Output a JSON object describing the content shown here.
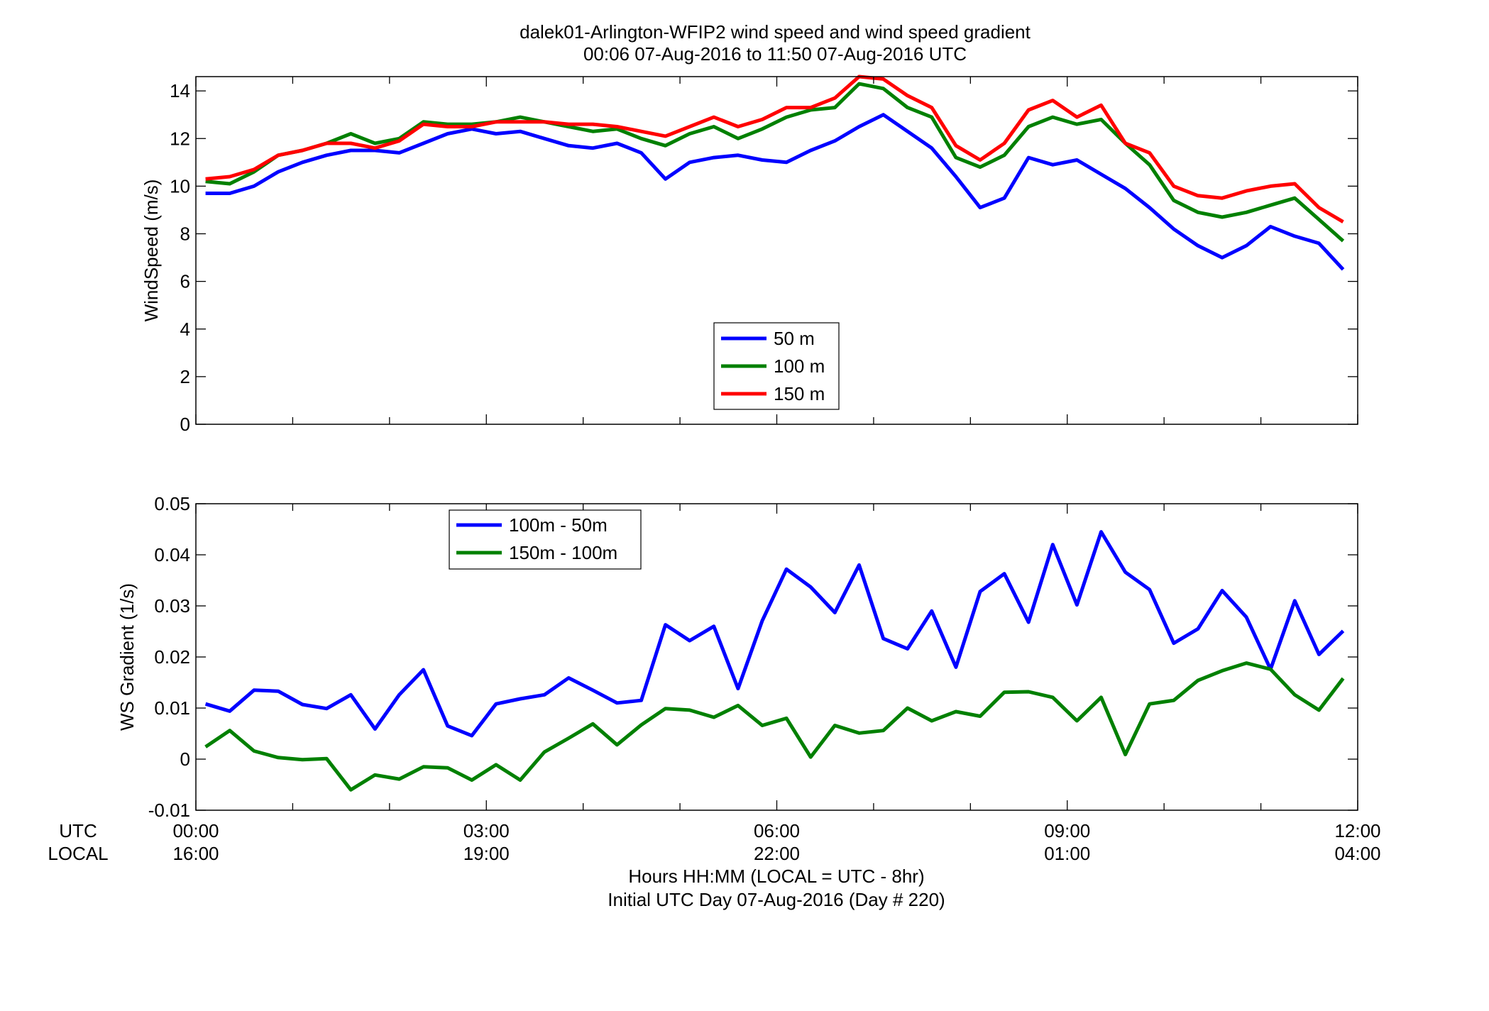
{
  "figure": {
    "title_line1": "dalek01-Arlington-WFIP2  wind speed and wind speed gradient",
    "title_line2": "00:06 07-Aug-2016 to 11:50 07-Aug-2016  UTC",
    "row_label_utc": "UTC",
    "row_label_local": "LOCAL",
    "xlabel_line1": "Hours HH:MM  (LOCAL = UTC - 8hr)",
    "xlabel_line2": "Initial UTC Day 07-Aug-2016 (Day # 220)"
  },
  "chart_data": [
    {
      "type": "line",
      "title": "",
      "ylabel": "WindSpeed (m/s)",
      "xlim": [
        0,
        12
      ],
      "ylim": [
        0,
        14.6
      ],
      "yticks": [
        0,
        2,
        4,
        6,
        8,
        10,
        12,
        14
      ],
      "ytick_labels": [
        "0",
        "2",
        "4",
        "6",
        "8",
        "10",
        "12",
        "14"
      ],
      "grid": false,
      "legend_position": "center",
      "x": [
        0.1,
        0.35,
        0.6,
        0.85,
        1.1,
        1.35,
        1.6,
        1.85,
        2.1,
        2.35,
        2.6,
        2.85,
        3.1,
        3.35,
        3.6,
        3.85,
        4.1,
        4.35,
        4.6,
        4.85,
        5.1,
        5.35,
        5.6,
        5.85,
        6.1,
        6.35,
        6.6,
        6.85,
        7.1,
        7.35,
        7.6,
        7.85,
        8.1,
        8.35,
        8.6,
        8.85,
        9.1,
        9.35,
        9.6,
        9.85,
        10.1,
        10.35,
        10.6,
        10.85,
        11.1,
        11.35,
        11.6,
        11.85
      ],
      "series": [
        {
          "name": "50 m",
          "color": "#0000ff",
          "values": [
            9.7,
            9.7,
            10.0,
            10.6,
            11.0,
            11.3,
            11.5,
            11.5,
            11.4,
            11.8,
            12.2,
            12.4,
            12.2,
            12.3,
            12.0,
            11.7,
            11.6,
            11.8,
            11.4,
            10.3,
            11.0,
            11.2,
            11.3,
            11.1,
            11.0,
            11.5,
            11.9,
            12.5,
            13.0,
            12.3,
            11.6,
            10.4,
            9.1,
            9.5,
            11.2,
            10.9,
            11.1,
            10.5,
            9.9,
            9.1,
            8.2,
            7.5,
            7.0,
            7.5,
            8.3,
            7.9,
            7.6,
            6.5
          ]
        },
        {
          "name": "100 m",
          "color": "#008000",
          "values": [
            10.2,
            10.1,
            10.6,
            11.3,
            11.5,
            11.8,
            12.2,
            11.8,
            12.0,
            12.7,
            12.6,
            12.6,
            12.7,
            12.9,
            12.7,
            12.5,
            12.3,
            12.4,
            12.0,
            11.7,
            12.2,
            12.5,
            12.0,
            12.4,
            12.9,
            13.2,
            13.3,
            14.3,
            14.1,
            13.3,
            12.9,
            11.2,
            10.8,
            11.3,
            12.5,
            12.9,
            12.6,
            12.8,
            11.8,
            10.9,
            9.4,
            8.9,
            8.7,
            8.9,
            9.2,
            9.5,
            8.6,
            7.7
          ]
        },
        {
          "name": "150 m",
          "color": "#ff0000",
          "values": [
            10.3,
            10.4,
            10.7,
            11.3,
            11.5,
            11.8,
            11.8,
            11.6,
            11.9,
            12.6,
            12.5,
            12.5,
            12.7,
            12.7,
            12.7,
            12.6,
            12.6,
            12.5,
            12.3,
            12.1,
            12.5,
            12.9,
            12.5,
            12.8,
            13.3,
            13.3,
            13.7,
            14.6,
            14.5,
            13.8,
            13.3,
            11.7,
            11.1,
            11.8,
            13.2,
            13.6,
            12.9,
            13.4,
            11.8,
            11.4,
            10.0,
            9.6,
            9.5,
            9.8,
            10.0,
            10.1,
            9.1,
            8.5
          ]
        }
      ]
    },
    {
      "type": "line",
      "title": "",
      "ylabel": "WS Gradient (1/s)",
      "xlim": [
        0,
        12
      ],
      "ylim": [
        -0.01,
        0.05
      ],
      "yticks": [
        -0.01,
        0,
        0.01,
        0.02,
        0.03,
        0.04,
        0.05
      ],
      "ytick_labels": [
        "-0.01",
        "0",
        "0.01",
        "0.02",
        "0.03",
        "0.04",
        "0.05"
      ],
      "xticks": [
        0,
        3,
        6,
        9,
        12
      ],
      "xtick_labels_utc": [
        "00:00",
        "03:00",
        "06:00",
        "09:00",
        "12:00"
      ],
      "xtick_labels_local": [
        "16:00",
        "19:00",
        "22:00",
        "01:00",
        "04:00"
      ],
      "grid": false,
      "legend_position": "top-left",
      "x": [
        0.1,
        0.35,
        0.6,
        0.85,
        1.1,
        1.35,
        1.6,
        1.85,
        2.1,
        2.35,
        2.6,
        2.85,
        3.1,
        3.35,
        3.6,
        3.85,
        4.1,
        4.35,
        4.6,
        4.85,
        5.1,
        5.35,
        5.6,
        5.85,
        6.1,
        6.35,
        6.6,
        6.85,
        7.1,
        7.35,
        7.6,
        7.85,
        8.1,
        8.35,
        8.6,
        8.85,
        9.1,
        9.35,
        9.6,
        9.85,
        10.1,
        10.35,
        10.6,
        10.85,
        11.1,
        11.35,
        11.6,
        11.85
      ],
      "series": [
        {
          "name": "100m - 50m",
          "color": "#0000ff",
          "values": [
            0.0108,
            0.0094,
            0.0135,
            0.0133,
            0.0107,
            0.0099,
            0.0126,
            0.0059,
            0.0126,
            0.0175,
            0.0065,
            0.0046,
            0.0108,
            0.0118,
            0.0126,
            0.0159,
            0.0135,
            0.011,
            0.0115,
            0.0263,
            0.0232,
            0.026,
            0.0138,
            0.0271,
            0.0372,
            0.0337,
            0.0287,
            0.038,
            0.0236,
            0.0216,
            0.029,
            0.018,
            0.0328,
            0.0363,
            0.0268,
            0.042,
            0.0302,
            0.0445,
            0.0366,
            0.0332,
            0.0227,
            0.0255,
            0.033,
            0.0278,
            0.0176,
            0.031,
            0.0205,
            0.0251
          ]
        },
        {
          "name": "150m - 100m",
          "color": "#008000",
          "values": [
            0.0024,
            0.0056,
            0.0016,
            0.0003,
            -0.0001,
            0.0001,
            -0.006,
            -0.0031,
            -0.0039,
            -0.0015,
            -0.0017,
            -0.0041,
            -0.0011,
            -0.0041,
            0.0014,
            0.0041,
            0.0069,
            0.0028,
            0.0067,
            0.0099,
            0.0096,
            0.0082,
            0.0105,
            0.0066,
            0.008,
            0.0004,
            0.0066,
            0.0051,
            0.0056,
            0.01,
            0.0075,
            0.0093,
            0.0084,
            0.0131,
            0.0132,
            0.0121,
            0.0075,
            0.0121,
            0.0009,
            0.0108,
            0.0115,
            0.0154,
            0.0173,
            0.0188,
            0.0176,
            0.0126,
            0.0096,
            0.0158
          ]
        }
      ]
    }
  ]
}
